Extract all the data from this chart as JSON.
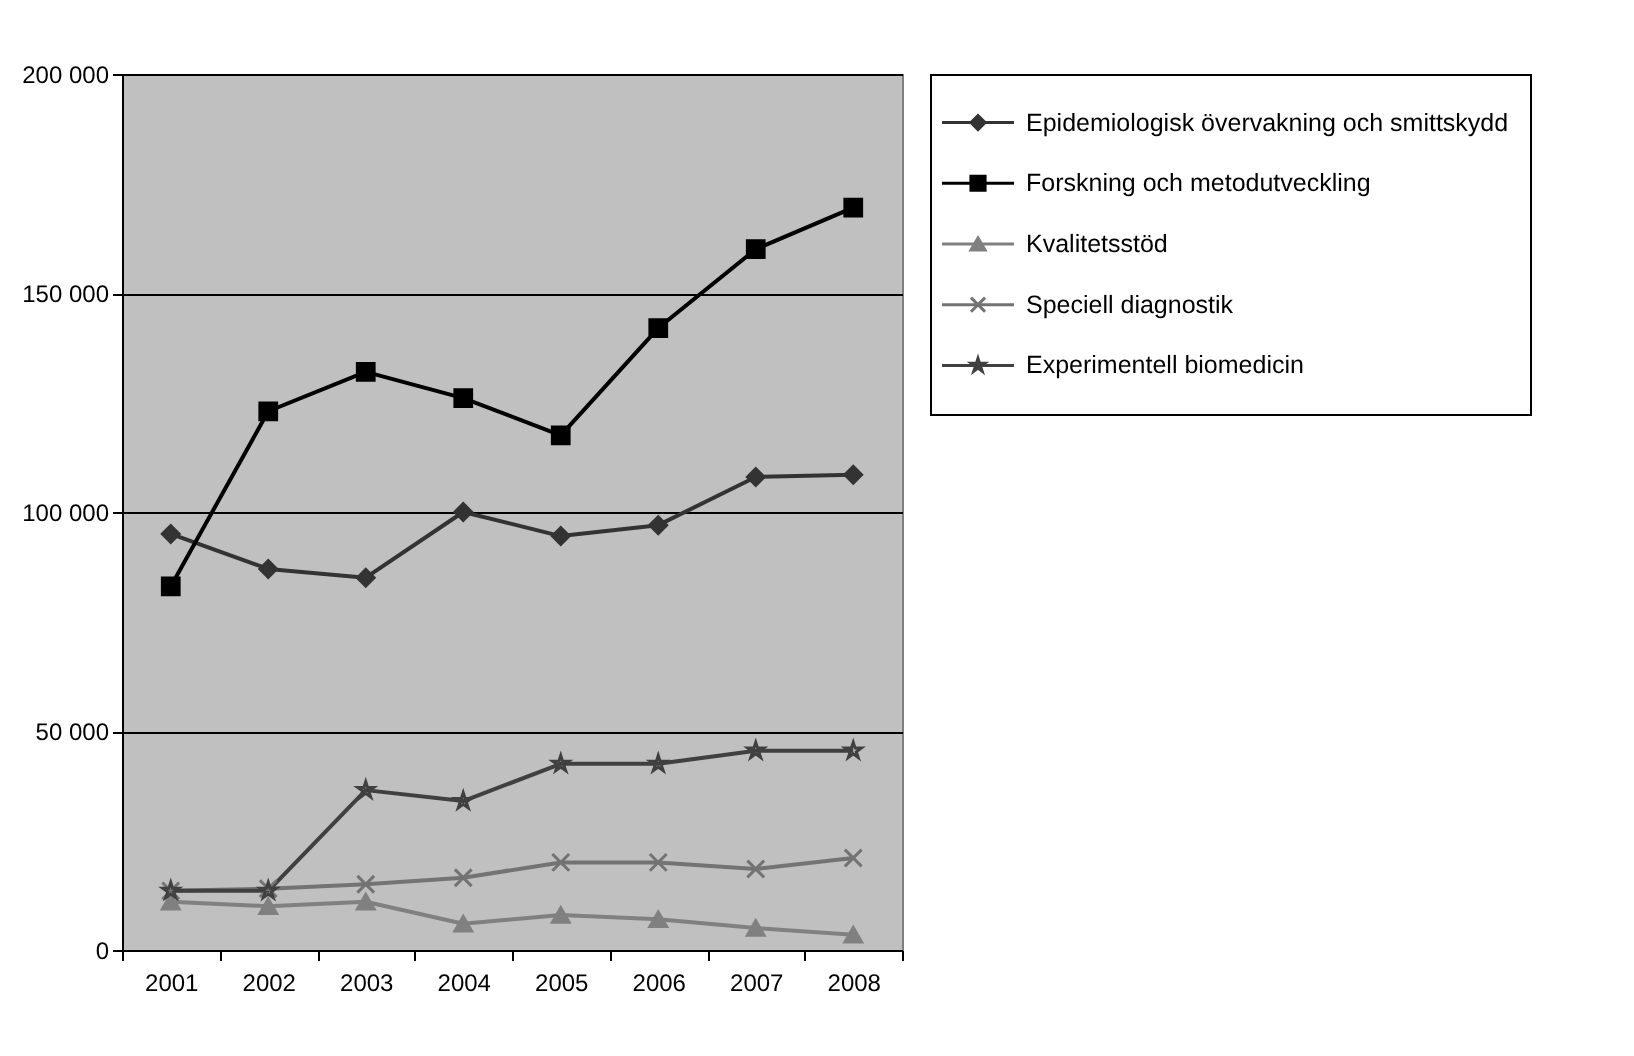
{
  "chart_data": {
    "type": "line",
    "categories": [
      "2001",
      "2002",
      "2003",
      "2004",
      "2005",
      "2006",
      "2007",
      "2008"
    ],
    "ylim": [
      0,
      200000
    ],
    "yticks": [
      {
        "value": 0,
        "label": "0"
      },
      {
        "value": 50000,
        "label": "50 000"
      },
      {
        "value": 100000,
        "label": "100 000"
      },
      {
        "value": 150000,
        "label": "150 000"
      },
      {
        "value": 200000,
        "label": "200 000"
      }
    ],
    "grid": "y",
    "legend": "right",
    "series": [
      {
        "name": "Epidemiologisk övervakning och smittskydd",
        "color": "#333333",
        "marker": "diamond",
        "values": [
          95000,
          87000,
          85000,
          100000,
          94500,
          97000,
          108000,
          108500
        ]
      },
      {
        "name": "Forskning och metodutveckling",
        "color": "#000000",
        "marker": "square",
        "values": [
          83000,
          123000,
          132000,
          126000,
          117500,
          142000,
          160000,
          169500
        ]
      },
      {
        "name": "Kvalitetsstöd",
        "color": "#808080",
        "marker": "triangle",
        "values": [
          11000,
          10000,
          11000,
          6000,
          8000,
          7000,
          5000,
          3500
        ]
      },
      {
        "name": "Speciell diagnostik",
        "color": "#737373",
        "marker": "cross",
        "values": [
          13500,
          14000,
          15000,
          16500,
          20000,
          20000,
          18500,
          21000
        ]
      },
      {
        "name": "Experimentell biomedicin",
        "color": "#404040",
        "marker": "star",
        "values": [
          13500,
          13500,
          36500,
          34000,
          42500,
          42500,
          45500,
          45500
        ]
      }
    ]
  }
}
